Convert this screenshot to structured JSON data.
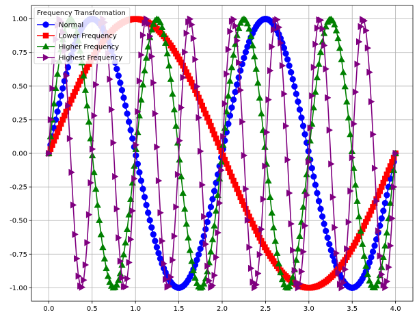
{
  "chart_data": {
    "type": "line",
    "title": "",
    "xlabel": "",
    "ylabel": "",
    "xlim": [
      -0.2,
      4.2
    ],
    "ylim": [
      -1.1,
      1.1
    ],
    "x_ticks": [
      "0.0",
      "0.5",
      "1.0",
      "1.5",
      "2.0",
      "2.5",
      "3.0",
      "3.5",
      "4.0"
    ],
    "y_ticks": [
      "1.00",
      "0.75",
      "0.50",
      "0.25",
      "0.00",
      "-0.25",
      "-0.50",
      "-0.75",
      "-1.00"
    ],
    "grid": true,
    "legend": {
      "title": "Frequency Transformation",
      "placement": "upper-left"
    },
    "x_start": 0,
    "x_end": 4,
    "point_count": 200,
    "series": [
      {
        "name": "Normal",
        "function": "sin",
        "frequency": 0.5,
        "color": "#0000ff",
        "marker": "circle"
      },
      {
        "name": "Lower Frequency",
        "function": "sin",
        "frequency": 0.25,
        "color": "#ff0000",
        "marker": "square"
      },
      {
        "name": "Higher Frequency",
        "function": "sin",
        "frequency": 1,
        "color": "#008000",
        "marker": "triangle-up"
      },
      {
        "name": "Highest Frequency",
        "function": "sin",
        "frequency": 2,
        "color": "#800080",
        "marker": "triangle-right"
      }
    ]
  }
}
